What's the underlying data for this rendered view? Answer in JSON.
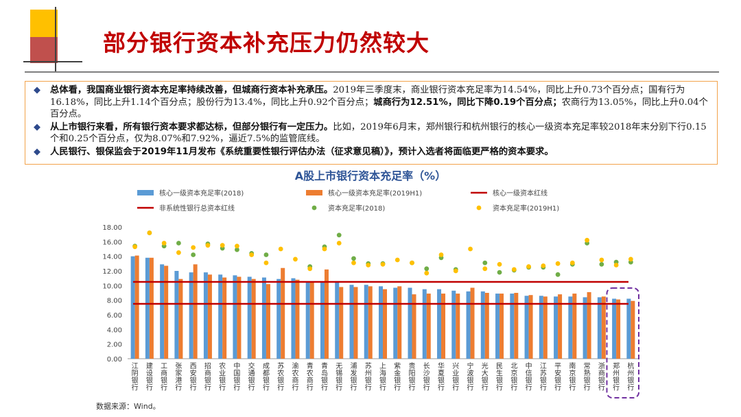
{
  "page": {
    "title": "部分银行资本补充压力仍然较大",
    "bullets": [
      {
        "bold": "总体看，我国商业银行资本充足率持续改善，但城商行资本补充承压。",
        "text": "2019年三季度末，商业银行资本充足率为14.54%，同比上升0.73个百分点；国有行为16.18%，同比上升1.14个百分点；股份行为13.4%，同比上升0.92个百分点；",
        "bold2": "城商行为12.51%，同比下降0.19个百分点；",
        "text2": "农商行为13.05%，同比上升0.04个百分点。"
      },
      {
        "bold": "从上市银行来看，所有银行资本要求都达标，但部分银行有一定压力。",
        "text": "比如，2019年6月末，郑州银行和杭州银行的核心一级资本充足率较2018年末分别下行0.15个和0.25个百分点，仅为8.07%和7.92%，逼近7.5%的监管底线。",
        "bold2": "",
        "text2": ""
      },
      {
        "bold": "人民银行、银保监会于2019年11月发布《系统重要性银行评估办法（征求意见稿）》，预计入选者将面临更严格的资本要求。",
        "text": "",
        "bold2": "",
        "text2": ""
      }
    ],
    "source": "数据来源：Wind。"
  },
  "chart_data": {
    "type": "bar",
    "title": "A股上市银行资本充足率（%）",
    "ylim": [
      0,
      18
    ],
    "yticks": [
      "0.00",
      "2.00",
      "4.00",
      "6.00",
      "8.00",
      "10.00",
      "12.00",
      "14.00",
      "16.00",
      "18.00"
    ],
    "categories": [
      "江阴银行",
      "建设银行",
      "工商银行",
      "张家港行",
      "西安银行",
      "招商银行",
      "农业银行",
      "中国银行",
      "交通银行",
      "成都银行",
      "苏农银行",
      "渝农商行",
      "青农商行",
      "青岛银行",
      "无锡银行",
      "浦发银行",
      "苏州银行",
      "上海银行",
      "紫金银行",
      "贵阳银行",
      "长沙银行",
      "华夏银行",
      "兴业银行",
      "宁波银行",
      "光大银行",
      "民生银行",
      "北京银行",
      "中信银行",
      "江苏银行",
      "平安银行",
      "南京银行",
      "常熟银行",
      "浙商银行",
      "郑州银行",
      "杭州银行"
    ],
    "series": [
      {
        "name": "核心一级资本充足率(2018)",
        "type": "bar",
        "color": "#5B9BD5",
        "values": [
          14.0,
          13.8,
          12.9,
          12.0,
          11.8,
          11.8,
          11.5,
          11.4,
          11.2,
          11.1,
          10.9,
          11.0,
          10.5,
          10.4,
          10.6,
          10.1,
          10.1,
          9.9,
          9.7,
          9.7,
          9.5,
          9.5,
          9.3,
          9.2,
          9.2,
          8.9,
          8.9,
          8.6,
          8.6,
          8.5,
          8.5,
          8.4,
          8.4,
          8.2,
          8.2
        ]
      },
      {
        "name": "核心一级资本充足率(2019H1)",
        "type": "bar",
        "color": "#ED7D31",
        "values": [
          14.1,
          13.8,
          12.7,
          10.9,
          12.9,
          11.5,
          11.1,
          11.2,
          10.9,
          10.2,
          12.4,
          10.8,
          10.5,
          12.2,
          9.8,
          9.8,
          9.9,
          9.5,
          9.9,
          8.8,
          8.9,
          8.9,
          8.9,
          9.7,
          9.0,
          8.9,
          9.0,
          8.7,
          8.5,
          8.8,
          8.9,
          9.1,
          8.5,
          8.1,
          7.9
        ]
      },
      {
        "name": "资本充足率(2018)",
        "type": "dot",
        "color": "#70AD47",
        "values": [
          15.4,
          17.2,
          15.4,
          15.8,
          14.2,
          15.7,
          15.1,
          14.9,
          14.4,
          14.2,
          null,
          null,
          12.6,
          15.3,
          16.9,
          13.7,
          13.0,
          13.0,
          null,
          13.1,
          12.3,
          13.8,
          12.2,
          null,
          13.1,
          11.8,
          12.1,
          12.5,
          12.5,
          11.5,
          12.9,
          15.8,
          12.9,
          13.2,
          13.2
        ]
      },
      {
        "name": "资本充足率(2019H1)",
        "type": "dot",
        "color": "#FFC000",
        "values": [
          15.3,
          17.2,
          15.8,
          14.5,
          15.2,
          15.5,
          15.5,
          15.4,
          14.2,
          13.1,
          15.0,
          13.6,
          12.3,
          15.0,
          15.8,
          13.1,
          12.8,
          12.9,
          13.5,
          13.1,
          11.7,
          14.2,
          12.0,
          15.0,
          12.3,
          12.9,
          12.2,
          12.6,
          12.7,
          13.0,
          13.1,
          16.2,
          13.5,
          12.8,
          13.6
        ]
      },
      {
        "name": "核心一级资本红线",
        "type": "line",
        "color": "#C00000",
        "value": 7.5
      },
      {
        "name": "非系统性银行总资本红线",
        "type": "line",
        "color": "#C00000",
        "value": 10.5
      }
    ],
    "highlight": [
      "郑州银行",
      "杭州银行"
    ]
  }
}
